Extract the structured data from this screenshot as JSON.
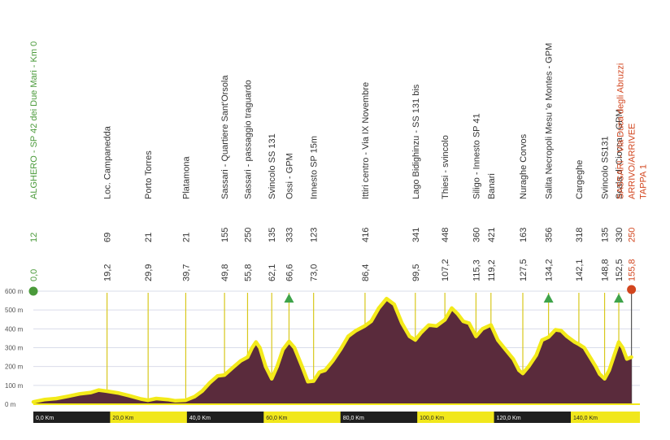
{
  "colors": {
    "start": "#4a9a3a",
    "finish": "#d2451e",
    "text": "#333333",
    "fill": "#5a2b3c",
    "outline": "#f3ea1a",
    "marker_line": "#d8c81c",
    "gpm": "#3ea34a",
    "grid": "#d9dcea",
    "axis_text": "#555555",
    "km_band": "#f1e71c",
    "km_dark": "#1f1f1f"
  },
  "chart_data": {
    "type": "area",
    "title": "",
    "xlabel": "",
    "ylabel": "",
    "xlim": [
      0,
      158
    ],
    "ylim": [
      0,
      650
    ],
    "y_ticks": [
      "0 m",
      "100 m",
      "200 m",
      "300 m",
      "400 m",
      "500 m",
      "600 m"
    ],
    "y_tick_values": [
      0,
      100,
      200,
      300,
      400,
      500,
      600
    ],
    "km_ticks": [
      {
        "km": 0,
        "label": "0,0 Km"
      },
      {
        "km": 20,
        "label": "20,0 Km"
      },
      {
        "km": 40,
        "label": "40,0 Km"
      },
      {
        "km": 60,
        "label": "60,0 Km"
      },
      {
        "km": 80,
        "label": "80,0 Km"
      },
      {
        "km": 100,
        "label": "100,0 Km"
      },
      {
        "km": 120,
        "label": "120,0 Km"
      },
      {
        "km": 140,
        "label": "140,0 Km"
      }
    ],
    "profile": [
      [
        0,
        12
      ],
      [
        3,
        25
      ],
      [
        6,
        30
      ],
      [
        9,
        42
      ],
      [
        12,
        55
      ],
      [
        15,
        62
      ],
      [
        17,
        75
      ],
      [
        19.2,
        69
      ],
      [
        22,
        60
      ],
      [
        25,
        45
      ],
      [
        28,
        28
      ],
      [
        29.9,
        21
      ],
      [
        32,
        30
      ],
      [
        35,
        25
      ],
      [
        37,
        18
      ],
      [
        39.7,
        21
      ],
      [
        42,
        40
      ],
      [
        44,
        70
      ],
      [
        46,
        115
      ],
      [
        48,
        150
      ],
      [
        49.8,
        155
      ],
      [
        52,
        195
      ],
      [
        54,
        230
      ],
      [
        55.8,
        250
      ],
      [
        57,
        300
      ],
      [
        58,
        330
      ],
      [
        59,
        300
      ],
      [
        60.5,
        200
      ],
      [
        62.1,
        135
      ],
      [
        63.5,
        200
      ],
      [
        65,
        290
      ],
      [
        66.6,
        333
      ],
      [
        68,
        300
      ],
      [
        70,
        200
      ],
      [
        71.5,
        120
      ],
      [
        73,
        123
      ],
      [
        74.5,
        170
      ],
      [
        76,
        180
      ],
      [
        78,
        230
      ],
      [
        80,
        290
      ],
      [
        82,
        360
      ],
      [
        84,
        390
      ],
      [
        86.4,
        416
      ],
      [
        88,
        440
      ],
      [
        90,
        510
      ],
      [
        92,
        560
      ],
      [
        94,
        530
      ],
      [
        96,
        430
      ],
      [
        98,
        360
      ],
      [
        99.5,
        341
      ],
      [
        101,
        380
      ],
      [
        103,
        420
      ],
      [
        105,
        415
      ],
      [
        107.2,
        448
      ],
      [
        109,
        510
      ],
      [
        110.5,
        480
      ],
      [
        112,
        440
      ],
      [
        113.5,
        430
      ],
      [
        115.3,
        360
      ],
      [
        117,
        400
      ],
      [
        119.2,
        421
      ],
      [
        121,
        340
      ],
      [
        123,
        290
      ],
      [
        125,
        240
      ],
      [
        126.5,
        180
      ],
      [
        127.5,
        163
      ],
      [
        129,
        200
      ],
      [
        131,
        260
      ],
      [
        132.5,
        340
      ],
      [
        134.2,
        356
      ],
      [
        136,
        395
      ],
      [
        137.5,
        390
      ],
      [
        139,
        360
      ],
      [
        141,
        330
      ],
      [
        142.1,
        318
      ],
      [
        143.5,
        300
      ],
      [
        145,
        250
      ],
      [
        146.5,
        200
      ],
      [
        147.5,
        160
      ],
      [
        148.8,
        135
      ],
      [
        150,
        180
      ],
      [
        151.3,
        260
      ],
      [
        152.5,
        330
      ],
      [
        153.5,
        300
      ],
      [
        154.6,
        240
      ],
      [
        155.8,
        250
      ]
    ],
    "waypoints": [
      {
        "km": 0.0,
        "km_label": "0,0",
        "alt": "12",
        "name": "ALGHERO - SP 42 dei Due Mari - Km 0",
        "type": "start"
      },
      {
        "km": 19.2,
        "km_label": "19,2",
        "alt": "69",
        "name": "Loc. Campanedda",
        "type": "point"
      },
      {
        "km": 29.9,
        "km_label": "29,9",
        "alt": "21",
        "name": "Porto Torres",
        "type": "point"
      },
      {
        "km": 39.7,
        "km_label": "39,7",
        "alt": "21",
        "name": "Platamona",
        "type": "point"
      },
      {
        "km": 49.8,
        "km_label": "49,8",
        "alt": "155",
        "name": "Sassari - Quartiere Sant'Orsola",
        "type": "point"
      },
      {
        "km": 55.8,
        "km_label": "55,8",
        "alt": "250",
        "name": "Sassari - passaggio traguardo",
        "type": "point"
      },
      {
        "km": 62.1,
        "km_label": "62,1",
        "alt": "135",
        "name": "Svincolo SS 131",
        "type": "point"
      },
      {
        "km": 66.6,
        "km_label": "66,6",
        "alt": "333",
        "name": "Ossi - GPM",
        "type": "gpm"
      },
      {
        "km": 73.0,
        "km_label": "73,0",
        "alt": "123",
        "name": "Innesto SP 15m",
        "type": "point"
      },
      {
        "km": 86.4,
        "km_label": "86,4",
        "alt": "416",
        "name": "Ittiri centro - Via IX Novembre",
        "type": "point"
      },
      {
        "km": 99.5,
        "km_label": "99,5",
        "alt": "341",
        "name": "Lago Bidighinzu - SS 131 bis",
        "type": "point"
      },
      {
        "km": 107.2,
        "km_label": "107,2",
        "alt": "448",
        "name": "Thiesi - svincolo",
        "type": "point"
      },
      {
        "km": 115.3,
        "km_label": "115,3",
        "alt": "360",
        "name": "Siligo - Innesto SP 41",
        "type": "point"
      },
      {
        "km": 119.2,
        "km_label": "119,2",
        "alt": "421",
        "name": "Banari",
        "type": "point"
      },
      {
        "km": 127.5,
        "km_label": "127,5",
        "alt": "163",
        "name": "Nuraghe Corvos",
        "type": "point"
      },
      {
        "km": 134.2,
        "km_label": "134,2",
        "alt": "356",
        "name": "Salita Necropoli Mesu 'e Montes - GPM",
        "type": "gpm"
      },
      {
        "km": 142.1,
        "km_label": "142,1",
        "alt": "318",
        "name": "Cargeghe",
        "type": "point"
      },
      {
        "km": 148.8,
        "km_label": "148,8",
        "alt": "135",
        "name": "Svincolo SS131",
        "type": "point"
      },
      {
        "km": 152.5,
        "km_label": "152,5",
        "alt": "330",
        "name": "Scala di Ciocca - GPM",
        "type": "gpm"
      },
      {
        "km": 155.8,
        "km_label": "155,8",
        "alt": "250",
        "name": "SASSARI - Via Duca degli Abruzzi",
        "name2": "ARRIVO/ARRIVEE",
        "name3": "TAPPA 1",
        "type": "finish"
      }
    ]
  }
}
